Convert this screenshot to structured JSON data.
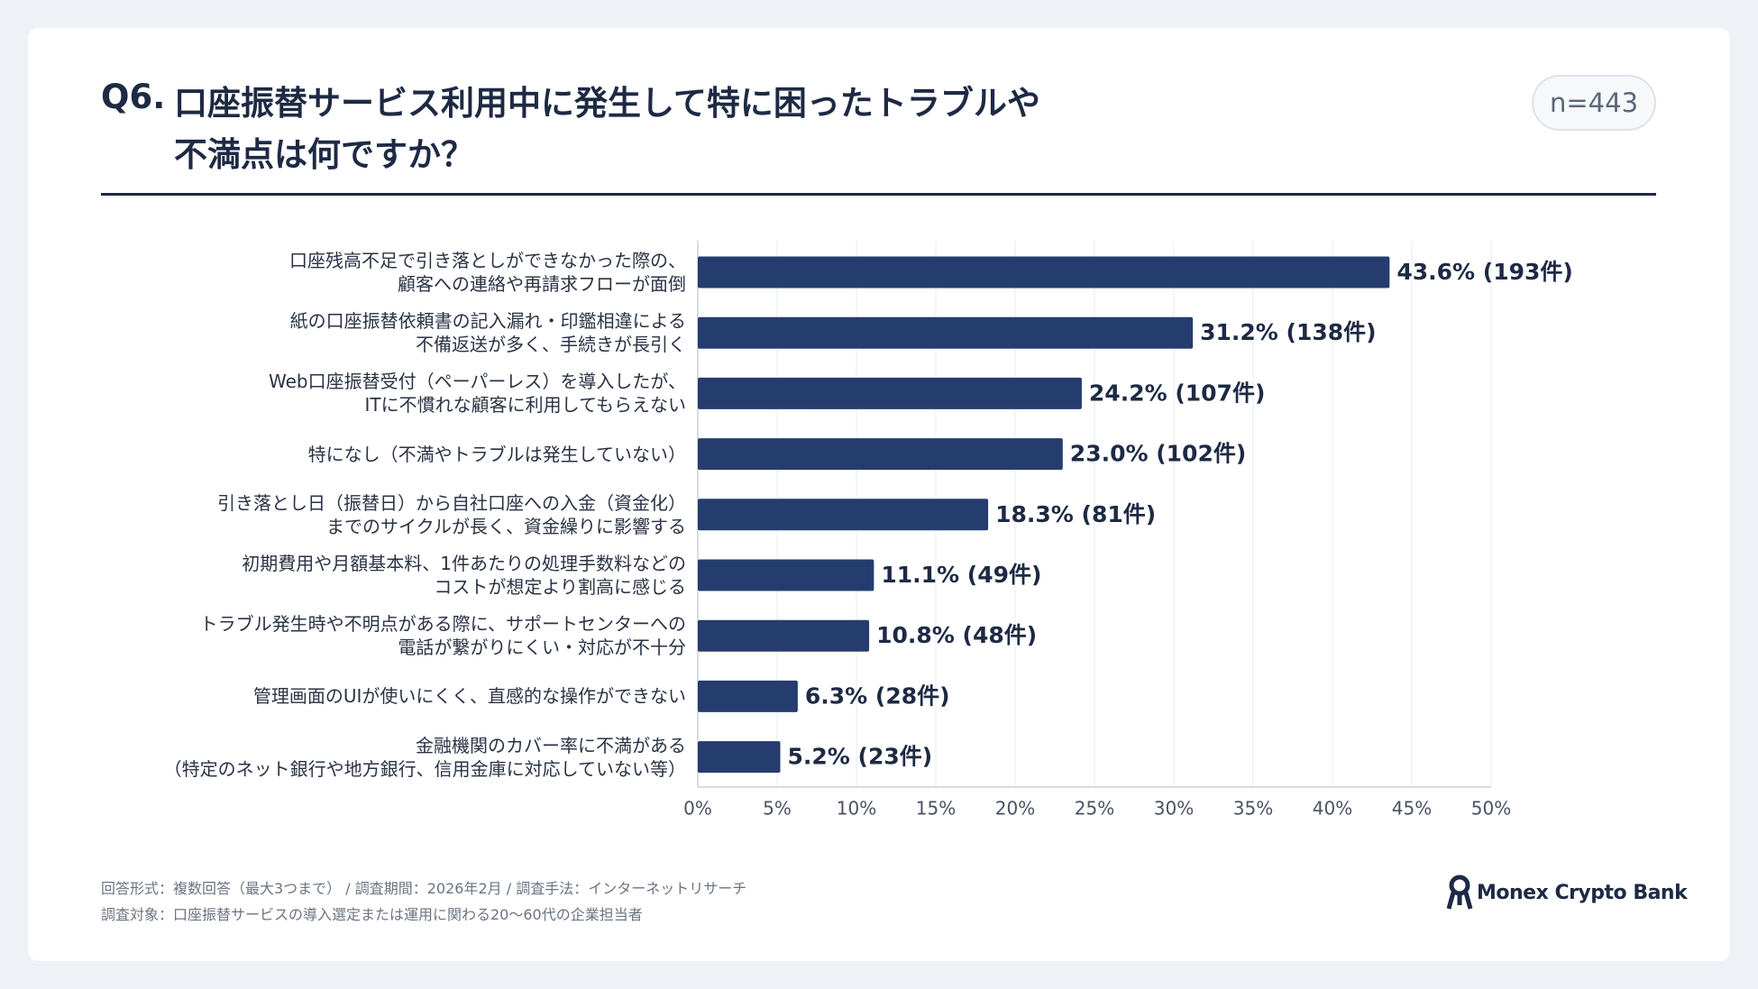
{
  "chart_data": {
    "type": "bar",
    "orientation": "horizontal",
    "question": "Q6.",
    "title": "口座振替サービス利用中に発生して特に困ったトラブルや\n不満点は何ですか？",
    "sample_size": "n=443",
    "categories": [
      "口座残高不足で引き落としができなかった際の、\n顧客への連絡や再請求フローが面倒",
      "紙の口座振替依頼書の記入漏れ・印鑑相違による\n不備返送が多く、手続きが長引く",
      "Web口座振替受付（ペーパーレス）を導入したが、\nITに不慣れな顧客に利用してもらえない",
      "特になし（不満やトラブルは発生していない）",
      "引き落とし日（振替日）から自社口座への入金（資金化）\nまでのサイクルが長く、資金繰りに影響する",
      "初期費用や月額基本料、1件あたりの処理手数料などの\nコストが想定より割高に感じる",
      "トラブル発生時や不明点がある際に、サポートセンターへの\n電話が繋がりにくい・対応が不十分",
      "管理画面のUIが使いにくく、直感的な操作ができない",
      "金融機関のカバー率に不満がある\n（特定のネット銀行や地方銀行、信用金庫に対応していない等）"
    ],
    "values": [
      43.6,
      31.2,
      24.2,
      23.0,
      18.3,
      11.1,
      10.8,
      6.3,
      5.2
    ],
    "value_labels": [
      "43.6% (193件)",
      "31.2% (138件)",
      "24.2% (107件)",
      "23.0% (102件)",
      "18.3% (81件)",
      "11.1% (49件)",
      "10.8% (48件)",
      "6.3% (28件)",
      "5.2% (23件)"
    ],
    "color": "#253d6e",
    "xlim": [
      0,
      50
    ],
    "xticks": [
      {
        "value": 0,
        "label": "0%"
      },
      {
        "value": 5,
        "label": "5%"
      },
      {
        "value": 10,
        "label": "10%"
      },
      {
        "value": 15,
        "label": "15%"
      },
      {
        "value": 20,
        "label": "20%"
      },
      {
        "value": 25,
        "label": "25%"
      },
      {
        "value": 30,
        "label": "30%"
      },
      {
        "value": 35,
        "label": "35%"
      },
      {
        "value": 40,
        "label": "40%"
      },
      {
        "value": 45,
        "label": "45%"
      },
      {
        "value": 50,
        "label": "50%"
      }
    ],
    "grid": true,
    "footnotes": [
      "回答形式：複数回答（最大3つまで） / 調査期間：2026年2月 / 調査手法：インターネットリサーチ",
      "調査対象：口座振替サービスの導入選定または運用に関わる20〜60代の企業担当者"
    ],
    "logo": "Monex Crypto Bank"
  }
}
